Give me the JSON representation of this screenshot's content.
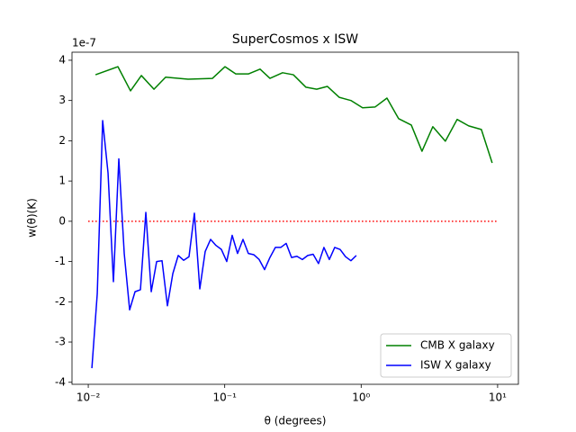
{
  "chart_data": {
    "type": "line",
    "title": "SuperCosmos x ISW",
    "xlabel": "θ (degrees)",
    "ylabel": "w(θ)(K)",
    "y_offset_text": "1e-7",
    "xscale": "log",
    "xlim": [
      0.0076,
      14.2
    ],
    "ylim": [
      -4.05,
      4.2
    ],
    "xticks": [
      {
        "value": 0.01,
        "label": "10⁻²"
      },
      {
        "value": 0.1,
        "label": "10⁻¹"
      },
      {
        "value": 1,
        "label": "10⁰"
      },
      {
        "value": 10,
        "label": "10¹"
      }
    ],
    "yticks": [
      -4,
      -3,
      -2,
      -1,
      0,
      1,
      2,
      3,
      4
    ],
    "legend": "lower right",
    "reference_line": {
      "value": 0,
      "xlim": [
        0.01,
        10
      ],
      "color": "#ff0000",
      "style": "dotted"
    },
    "series": [
      {
        "name": "CMB X galaxy",
        "color": "#008000",
        "x": [
          0.0113,
          0.0165,
          0.0204,
          0.0245,
          0.0303,
          0.0369,
          0.0539,
          0.0813,
          0.1005,
          0.1205,
          0.149,
          0.1816,
          0.2146,
          0.2655,
          0.3185,
          0.3937,
          0.472,
          0.566,
          0.69,
          0.841,
          1.024,
          1.267,
          1.545,
          1.88,
          2.33,
          2.79,
          3.35,
          4.14,
          5.05,
          6.14,
          7.6,
          9.12
        ],
        "values": [
          3.64,
          3.84,
          3.24,
          3.62,
          3.28,
          3.58,
          3.53,
          3.55,
          3.84,
          3.66,
          3.66,
          3.78,
          3.55,
          3.69,
          3.64,
          3.33,
          3.28,
          3.35,
          3.08,
          3.0,
          2.82,
          2.84,
          3.06,
          2.55,
          2.39,
          1.74,
          2.35,
          1.99,
          2.53,
          2.37,
          2.28,
          1.45
        ]
      },
      {
        "name": "ISW X galaxy",
        "color": "#0000ff",
        "x": [
          0.01063,
          0.01164,
          0.01275,
          0.01396,
          0.01529,
          0.01675,
          0.01835,
          0.0201,
          0.02202,
          0.02412,
          0.02642,
          0.02894,
          0.0317,
          0.03472,
          0.03803,
          0.04166,
          0.04563,
          0.04998,
          0.05474,
          0.05996,
          0.06568,
          0.07194,
          0.0788,
          0.0863,
          0.09454,
          0.1035,
          0.1134,
          0.1242,
          0.1361,
          0.149,
          0.1632,
          0.1788,
          0.1959,
          0.2145,
          0.235,
          0.2574,
          0.282,
          0.3089,
          0.3383,
          0.3706,
          0.4059,
          0.4446,
          0.487,
          0.5334,
          0.5843,
          0.64,
          0.701,
          0.7678,
          0.8411,
          0.9211
        ],
        "values": [
          -3.65,
          -1.8,
          2.5,
          1.2,
          -1.5,
          1.55,
          -0.8,
          -2.2,
          -1.75,
          -1.7,
          0.22,
          -1.75,
          -1.0,
          -0.98,
          -2.1,
          -1.3,
          -0.85,
          -0.97,
          -0.88,
          0.2,
          -1.68,
          -0.75,
          -0.45,
          -0.6,
          -0.7,
          -1.0,
          -0.35,
          -0.8,
          -0.45,
          -0.8,
          -0.83,
          -0.95,
          -1.2,
          -0.9,
          -0.65,
          -0.65,
          -0.55,
          -0.9,
          -0.87,
          -0.95,
          -0.85,
          -0.82,
          -1.05,
          -0.65,
          -0.95,
          -0.65,
          -0.7,
          -0.88,
          -0.98,
          -0.85
        ]
      }
    ]
  }
}
